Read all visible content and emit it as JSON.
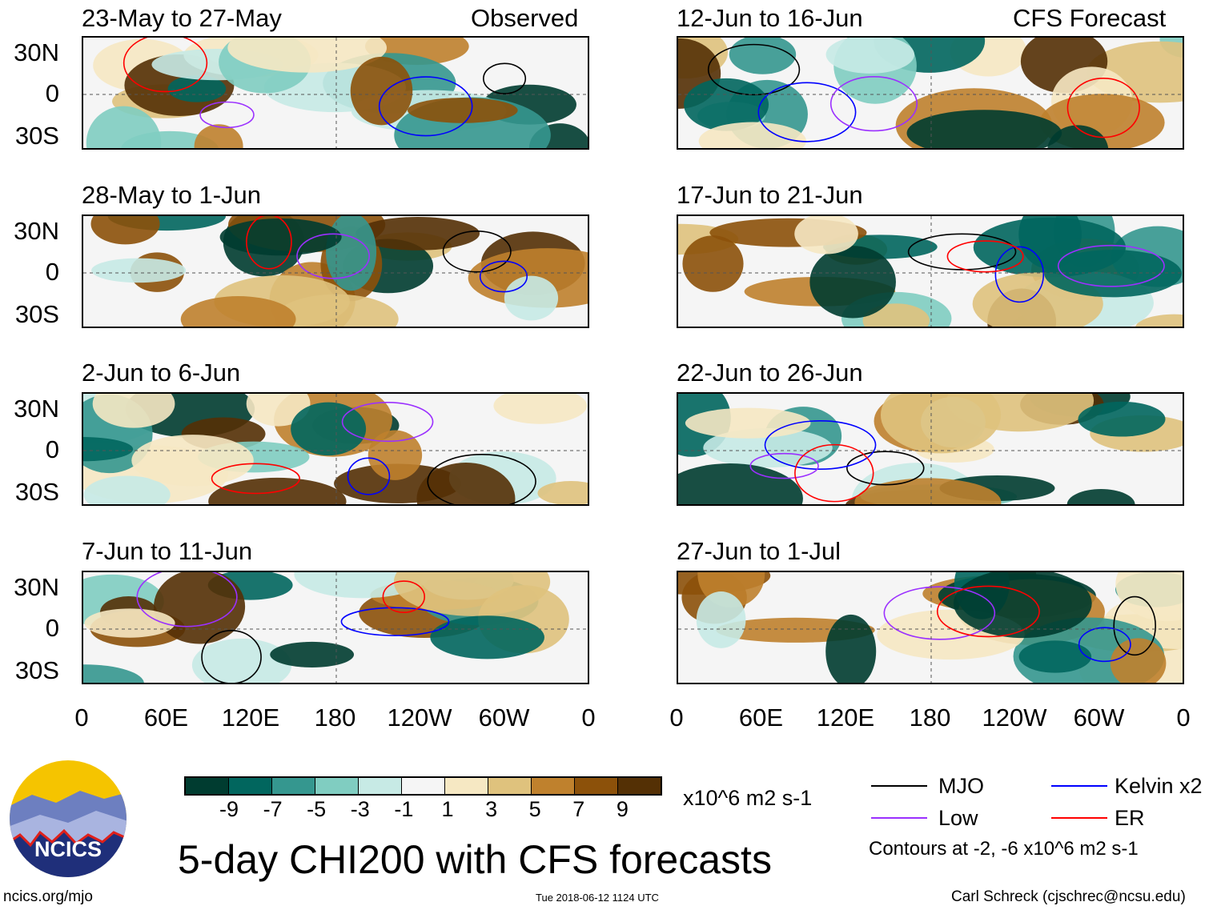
{
  "chart_data": {
    "type": "heatmap",
    "title": "5-day CHI200 with CFS forecasts",
    "colorbar": {
      "ticks": [
        "-9",
        "-7",
        "-5",
        "-3",
        "-1",
        "1",
        "3",
        "5",
        "7",
        "9"
      ],
      "colors": [
        "#003c30",
        "#01665e",
        "#35978f",
        "#80cdc1",
        "#c7eae5",
        "#f5f5f5",
        "#f6e8c3",
        "#dfc27d",
        "#bf812d",
        "#8c510a",
        "#543005"
      ],
      "units": "x10^6 m2 s-1"
    },
    "y_ticks": [
      "30N",
      "0",
      "30S"
    ],
    "x_ticks": [
      "0",
      "60E",
      "120E",
      "180",
      "120W",
      "60W",
      "0"
    ],
    "columns": [
      {
        "label": "Observed",
        "panels": [
          "23-May to 27-May",
          "28-May to 1-Jun",
          "2-Jun to 6-Jun",
          "7-Jun to 11-Jun"
        ]
      },
      {
        "label": "CFS Forecast",
        "panels": [
          "12-Jun to 16-Jun",
          "17-Jun to 21-Jun",
          "22-Jun to 26-Jun",
          "27-Jun to 1-Jul"
        ]
      }
    ],
    "legend": [
      {
        "label": "MJO",
        "color": "#000000"
      },
      {
        "label": "Kelvin x2",
        "color": "#0000ff"
      },
      {
        "label": "Low",
        "color": "#9b30ff"
      },
      {
        "label": "ER",
        "color": "#ff0000"
      }
    ],
    "contour_note": "Contours at -2, -6 x10^6 m2 s-1"
  },
  "footer": {
    "logo_text": "NCICS",
    "url": "ncics.org/mjo",
    "timestamp": "Tue 2018-06-12 1124 UTC",
    "credit": "Carl Schreck (cjschrec@ncsu.edu)"
  }
}
